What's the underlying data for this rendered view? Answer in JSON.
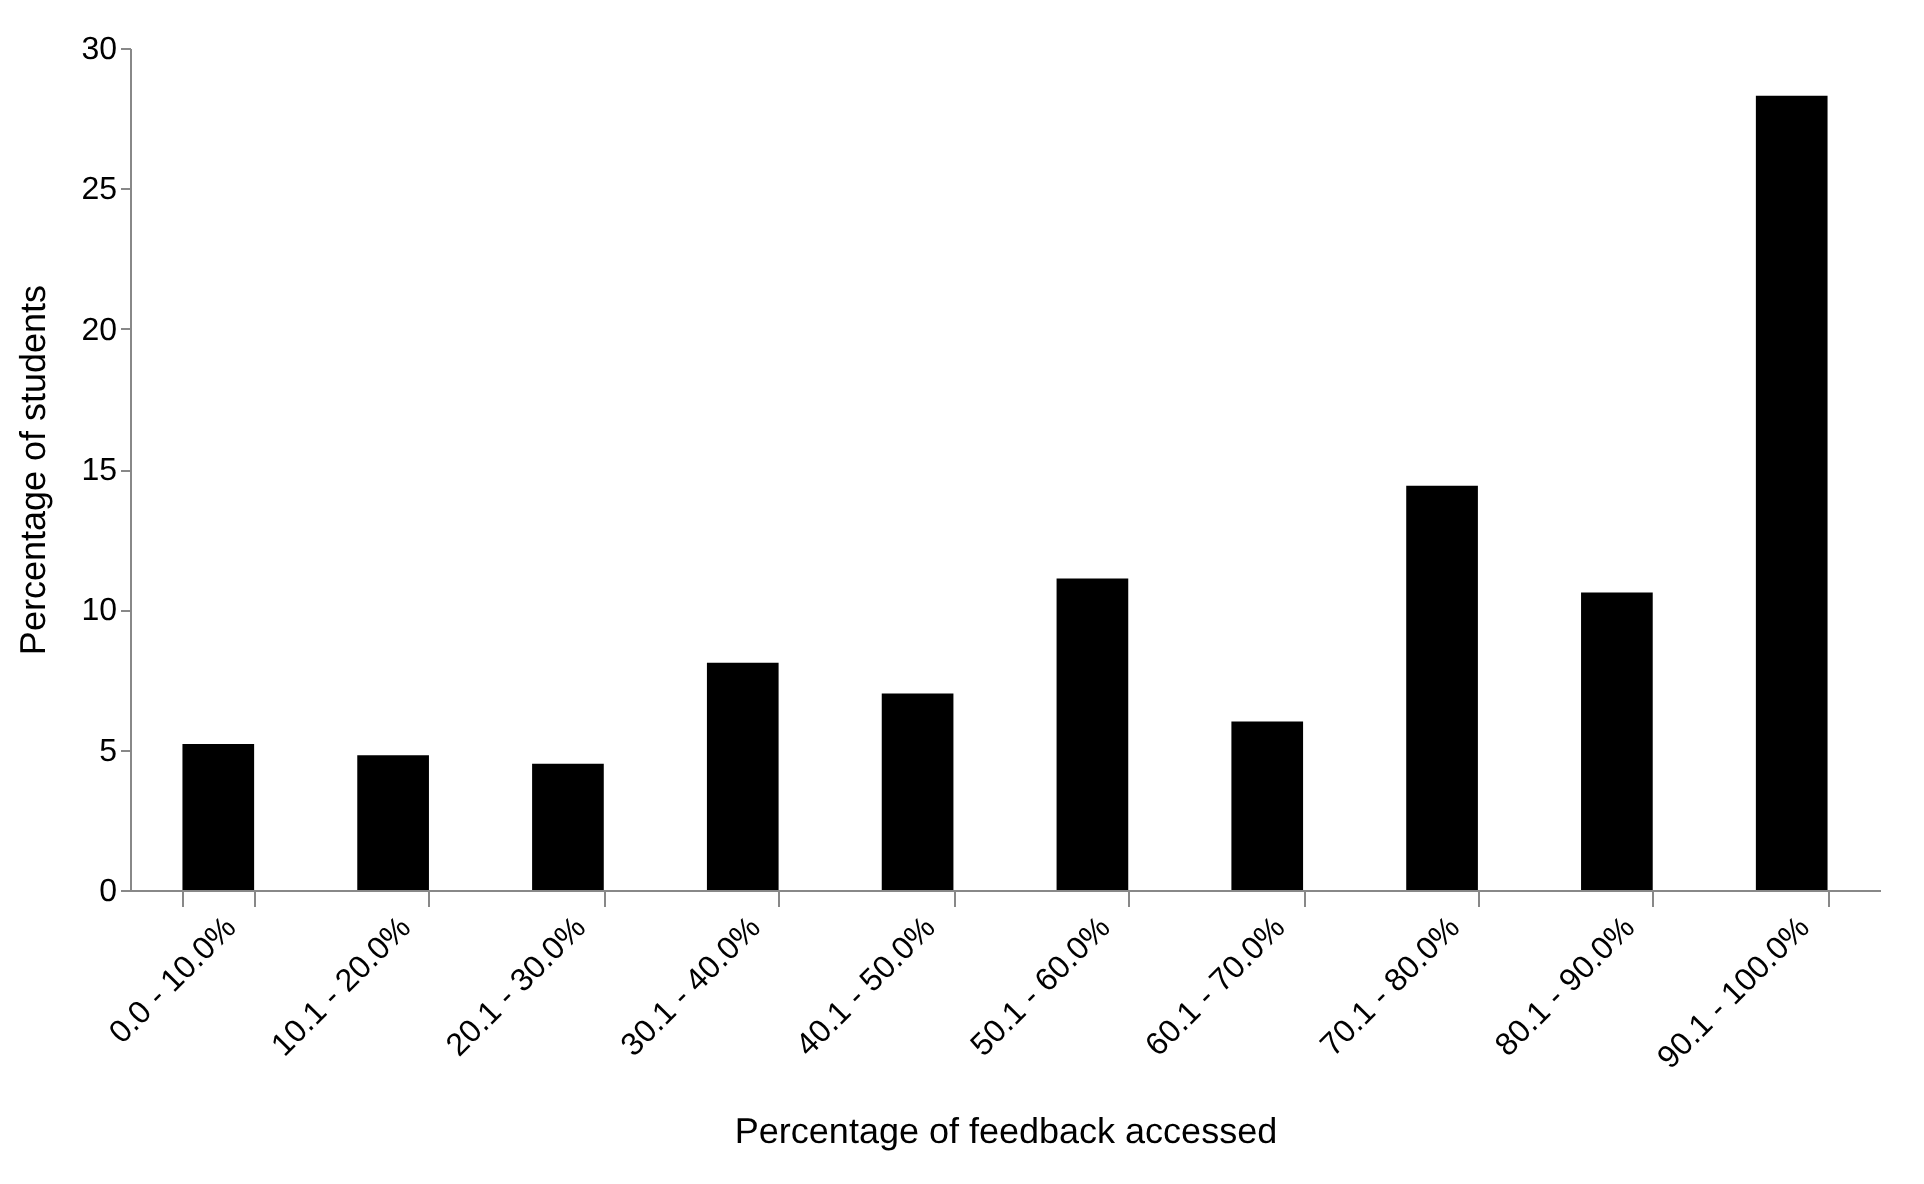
{
  "chart_data": {
    "type": "bar",
    "xlabel": "Percentage of feedback accessed",
    "ylabel": "Percentage of students",
    "categories": [
      "0.0 - 10.0%",
      "10.1 - 20.0%",
      "20.1 - 30.0%",
      "30.1 - 40.0%",
      "40.1 - 50.0%",
      "50.1 - 60.0%",
      "60.1 - 70.0%",
      "70.1 - 80.0%",
      "80.1 - 90.0%",
      "90.1 - 100.0%"
    ],
    "values": [
      5.2,
      4.8,
      4.5,
      8.1,
      7.0,
      11.1,
      6.0,
      14.4,
      10.6,
      28.3
    ],
    "color": "#000000",
    "ylim": [
      0,
      30
    ],
    "yticks": [
      0,
      5,
      10,
      15,
      20,
      25,
      30
    ],
    "grid": false
  }
}
